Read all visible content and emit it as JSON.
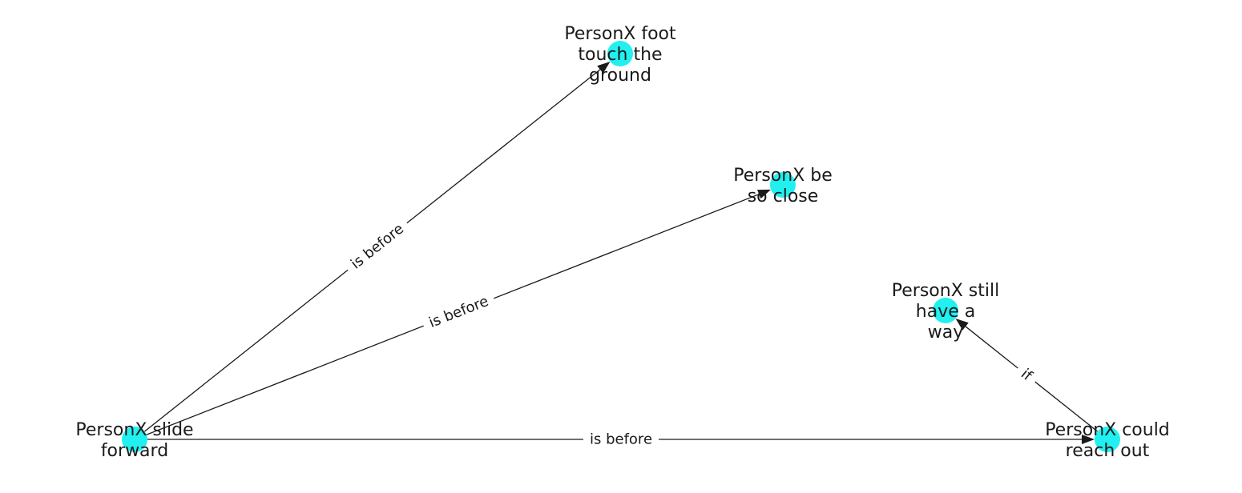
{
  "colors": {
    "node": "#22f0f0",
    "edge": "#1a1a1a",
    "text": "#1a1a1a",
    "background": "#ffffff"
  },
  "nodes": [
    {
      "id": "slide",
      "lines": [
        "PersonX slide",
        "forward"
      ]
    },
    {
      "id": "foot",
      "lines": [
        "PersonX foot",
        "touch the",
        "ground"
      ]
    },
    {
      "id": "close",
      "lines": [
        "PersonX be",
        "so close"
      ]
    },
    {
      "id": "way",
      "lines": [
        "PersonX still",
        "have a",
        "way"
      ]
    },
    {
      "id": "reach",
      "lines": [
        "PersonX could",
        "reach out"
      ]
    }
  ],
  "edges": [
    {
      "from": "slide",
      "to": "foot",
      "label": "is before"
    },
    {
      "from": "slide",
      "to": "close",
      "label": "is before"
    },
    {
      "from": "slide",
      "to": "reach",
      "label": "is before"
    },
    {
      "from": "reach",
      "to": "way",
      "label": "if"
    }
  ]
}
